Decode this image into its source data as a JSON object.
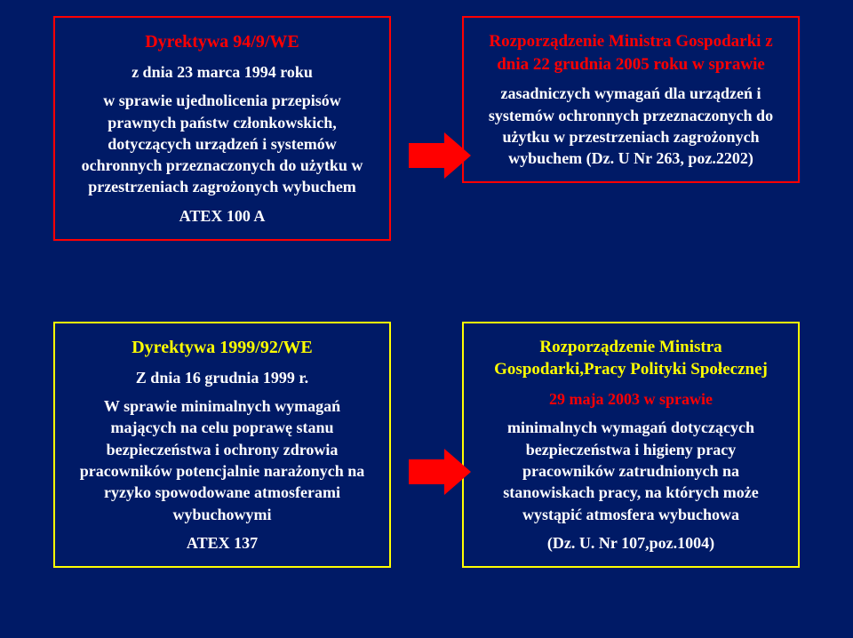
{
  "slide": {
    "background_color": "#001a66",
    "arrow_color": "#ff0000",
    "boxes": {
      "top_left": {
        "border_color": "#ff0000",
        "title": "Dyrektywa  94/9/WE",
        "title_color": "#ff0000",
        "title_fontsize": 20,
        "sub": "z dnia 23 marca 1994 roku",
        "sub_color": "#ffffff",
        "sub_fontsize": 18,
        "body": "w sprawie ujednolicenia przepisów prawnych państw członkowskich, dotyczących urządzeń i systemów ochronnych przeznaczonych do użytku w przestrzeniach zagrożonych wybuchem",
        "body_color": "#ffffff",
        "body_fontsize": 18,
        "foot": "ATEX 100 A",
        "foot_color": "#ffffff",
        "foot_fontsize": 18
      },
      "top_right": {
        "border_color": "#ff0000",
        "title": "Rozporządzenie Ministra Gospodarki z dnia 22 grudnia 2005 roku w sprawie",
        "title_color": "#ff0000",
        "title_fontsize": 19,
        "body": "zasadniczych wymagań dla urządzeń i systemów ochronnych przeznaczonych do użytku w przestrzeniach zagrożonych wybuchem (Dz. U Nr 263, poz.2202)",
        "body_color": "#ffffff",
        "body_fontsize": 18
      },
      "bottom_left": {
        "border_color": "#ffff00",
        "title": "Dyrektywa 1999/92/WE",
        "title_color": "#ffff00",
        "title_fontsize": 20,
        "sub": "Z dnia 16 grudnia 1999 r.",
        "sub_color": "#ffffff",
        "sub_fontsize": 18,
        "body": "W sprawie minimalnych wymagań mających na celu poprawę stanu bezpieczeństwa i ochrony zdrowia pracowników potencjalnie narażonych na ryzyko spowodowane atmosferami wybuchowymi",
        "body_color": "#ffffff",
        "body_fontsize": 18,
        "foot": "ATEX 137",
        "foot_color": "#ffffff",
        "foot_fontsize": 18
      },
      "bottom_right": {
        "border_color": "#ffff00",
        "title": "Rozporządzenie Ministra Gospodarki,Pracy Polityki Społecznej",
        "title_color": "#ffff00",
        "title_fontsize": 19,
        "sub": "29 maja 2003 w sprawie",
        "sub_color": "#ff0000",
        "sub_fontsize": 18,
        "body": "minimalnych wymagań dotyczących bezpieczeństwa i higieny pracy pracowników zatrudnionych na stanowiskach pracy, na których może wystąpić atmosfera wybuchowa",
        "body_color": "#ffffff",
        "body_fontsize": 18,
        "foot": "(Dz. U. Nr 107,poz.1004)",
        "foot_color": "#ffffff",
        "foot_fontsize": 18
      }
    }
  }
}
